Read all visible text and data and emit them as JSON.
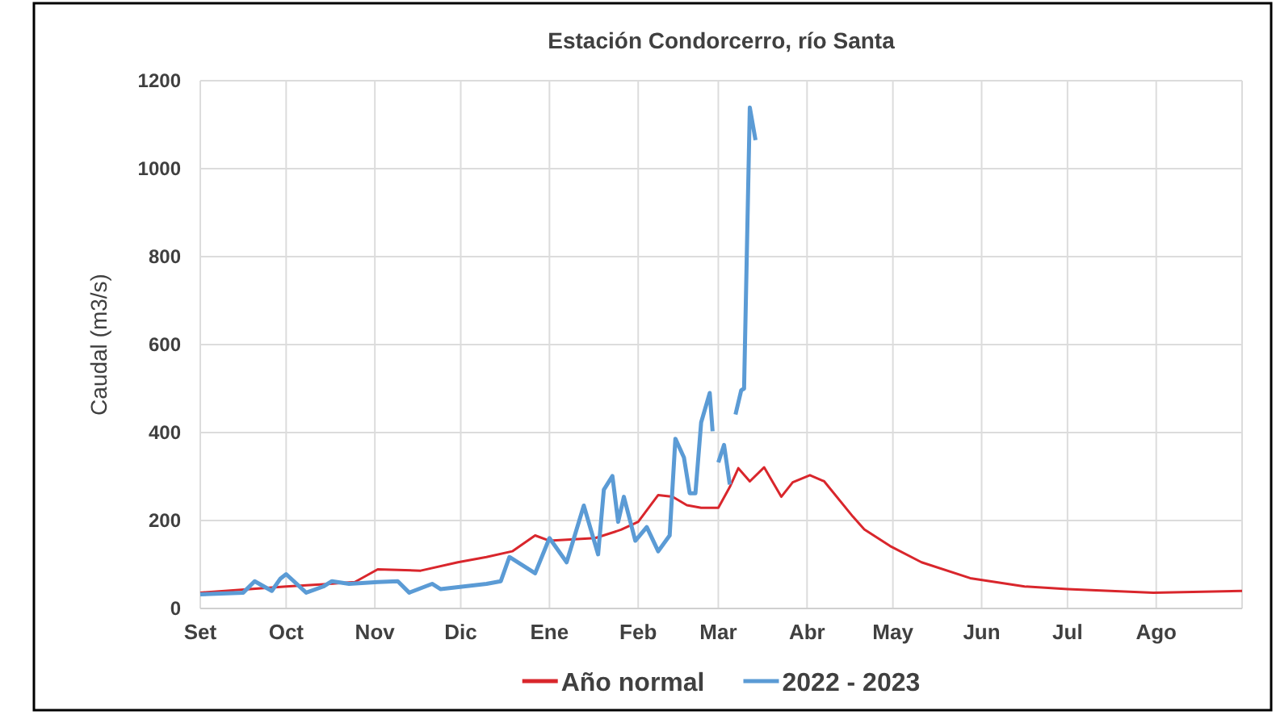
{
  "chart_data": {
    "type": "line",
    "title": "Estación Condorcerro, río Santa",
    "ylabel": "Caudal  (m3/s)",
    "xlim": [
      "2022-09-01",
      "2023-08-31"
    ],
    "xticks": [
      {
        "value": "2022-09-01",
        "label": "Set"
      },
      {
        "value": "2022-10-01",
        "label": "Oct"
      },
      {
        "value": "2022-11-01",
        "label": "Nov"
      },
      {
        "value": "2022-12-01",
        "label": "Dic"
      },
      {
        "value": "2023-01-01",
        "label": "Ene"
      },
      {
        "value": "2023-02-01",
        "label": "Feb"
      },
      {
        "value": "2023-03-01",
        "label": "Mar"
      },
      {
        "value": "2023-04-01",
        "label": "Abr"
      },
      {
        "value": "2023-05-01",
        "label": "May"
      },
      {
        "value": "2023-06-01",
        "label": "Jun"
      },
      {
        "value": "2023-07-01",
        "label": "Jul"
      },
      {
        "value": "2023-08-01",
        "label": "Ago"
      }
    ],
    "ylim": [
      0,
      1200
    ],
    "yticks": [
      0,
      200,
      400,
      600,
      800,
      1000,
      1200
    ],
    "grid": true,
    "legend": "bottom",
    "series": [
      {
        "name": "Año normal",
        "color": "#d9262c",
        "x": [
          "2022-09-01",
          "2022-10-01",
          "2022-10-14",
          "2022-10-25",
          "2022-11-02",
          "2022-11-17",
          "2022-11-30",
          "2022-12-10",
          "2022-12-19",
          "2022-12-27",
          "2023-01-01",
          "2023-01-17",
          "2023-01-26",
          "2023-02-01",
          "2023-02-08",
          "2023-02-13",
          "2023-02-18",
          "2023-02-23",
          "2023-03-01",
          "2023-03-05",
          "2023-03-08",
          "2023-03-12",
          "2023-03-17",
          "2023-03-23",
          "2023-03-27",
          "2023-04-02",
          "2023-04-07",
          "2023-04-17",
          "2023-04-21",
          "2023-04-30",
          "2023-05-11",
          "2023-05-28",
          "2023-06-16",
          "2023-07-01",
          "2023-07-31",
          "2023-08-31"
        ],
        "values": [
          36,
          50,
          55,
          60,
          89,
          86,
          105,
          117,
          130,
          166,
          154,
          160,
          179,
          197,
          258,
          254,
          235,
          229,
          229,
          276,
          319,
          289,
          321,
          254,
          287,
          303,
          289,
          209,
          180,
          142,
          105,
          69,
          50,
          44,
          36,
          40
        ]
      },
      {
        "name": "2022 - 2023",
        "color": "#5b9bd5",
        "x": [
          "2022-09-01",
          "2022-09-16",
          "2022-09-20",
          "2022-09-26",
          "2022-09-29",
          "2022-10-01",
          "2022-10-08",
          "2022-10-14",
          "2022-10-17",
          "2022-10-23",
          "2022-11-02",
          "2022-11-09",
          "2022-11-13",
          "2022-11-21",
          "2022-11-24",
          "2022-12-02",
          "2022-12-10",
          "2022-12-15",
          "2022-12-18",
          "2022-12-27",
          "2023-01-01",
          "2023-01-07",
          "2023-01-13",
          "2023-01-18",
          "2023-01-20",
          "2023-01-23",
          "2023-01-25",
          "2023-01-27",
          "2023-01-31",
          "2023-02-04",
          "2023-02-08",
          "2023-02-12",
          "2023-02-14",
          "2023-02-17",
          "2023-02-19",
          "2023-02-21",
          "2023-02-23",
          "2023-02-26",
          "2023-02-27",
          "2023-02-28",
          "2023-03-01",
          "2023-03-03",
          "2023-03-05",
          "2023-03-06",
          "2023-03-07",
          "2023-03-09",
          "2023-03-10",
          "2023-03-12",
          "2023-03-14"
        ],
        "values": [
          32,
          36,
          62,
          40,
          68,
          78,
          36,
          50,
          62,
          56,
          60,
          62,
          36,
          56,
          44,
          50,
          56,
          62,
          117,
          80,
          160,
          105,
          234,
          123,
          270,
          301,
          197,
          254,
          154,
          185,
          130,
          166,
          386,
          343,
          262,
          262,
          423,
          490,
          403,
          null,
          332,
          372,
          282,
          null,
          441,
          496,
          500,
          1139,
          1065
        ]
      }
    ]
  }
}
